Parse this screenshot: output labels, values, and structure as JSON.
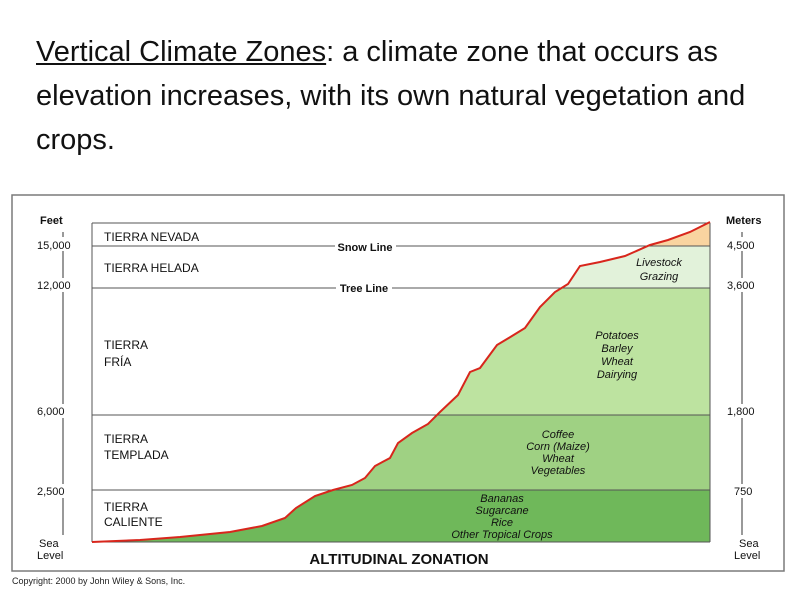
{
  "heading": {
    "term": "Vertical Climate Zones",
    "colon": ":",
    "definition": " a climate zone that occurs as elevation increases, with its own natural vegetation and crops."
  },
  "figure": {
    "title": "ALTITUDINAL ZONATION",
    "left_axis_title": "Feet",
    "right_axis_title": "Meters",
    "left_ticks": [
      "15,000",
      "12,000",
      "6,000",
      "2,500",
      "Sea",
      "Level"
    ],
    "right_ticks": [
      "4,500",
      "3,600",
      "1,800",
      "750",
      "Sea",
      "Level"
    ],
    "lines": {
      "snow_line": "Snow Line",
      "tree_line": "Tree Line"
    },
    "zones": [
      {
        "name_line1": "TIERRA NEVADA",
        "name_line2": ""
      },
      {
        "name_line1": "TIERRA HELADA",
        "name_line2": ""
      },
      {
        "name_line1": "TIERRA",
        "name_line2": "FRÍA"
      },
      {
        "name_line1": "TIERRA",
        "name_line2": "TEMPLADA"
      },
      {
        "name_line1": "TIERRA",
        "name_line2": "CALIENTE"
      }
    ],
    "crops": {
      "helada": [
        "Livestock",
        "Grazing"
      ],
      "fria": [
        "Potatoes",
        "Barley",
        "Wheat",
        "Dairying"
      ],
      "templada": [
        "Coffee",
        "Corn (Maize)",
        "Wheat",
        "Vegetables"
      ],
      "caliente": [
        "Bananas",
        "Sugarcane",
        "Rice",
        "Other Tropical Crops"
      ]
    },
    "colors": {
      "nevada": "#f9d4a0",
      "helada": "#e2f2da",
      "fria": "#bde3a0",
      "templada": "#9fd183",
      "caliente": "#6fb85a",
      "profile": "#d8261c"
    },
    "copyright": "Copyright: 2000 by John Wiley & Sons, Inc."
  }
}
